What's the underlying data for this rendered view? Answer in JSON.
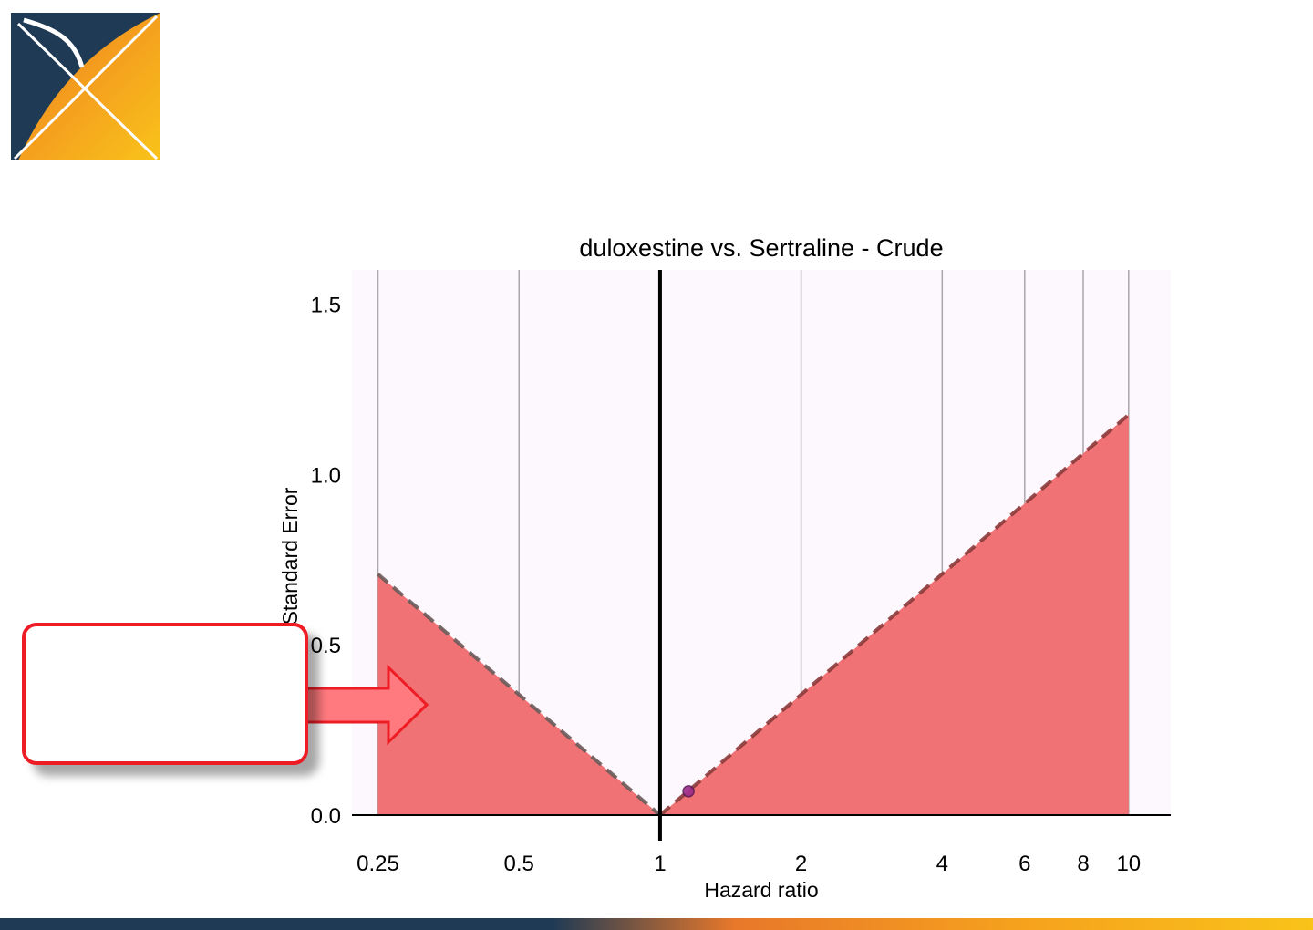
{
  "logo": {
    "name": "OHDSI logo",
    "colors": {
      "navy": "#1e3a55",
      "orange": "#f08a24",
      "yellow": "#f9c31a"
    }
  },
  "chart_data": {
    "type": "scatter",
    "title": "duloxestine vs. Sertraline - Crude",
    "xlabel": "Hazard ratio",
    "ylabel": "Standard Error",
    "x_scale": "log",
    "xlim": [
      0.22,
      12.3
    ],
    "ylim": [
      0,
      1.6
    ],
    "x_ticks": [
      0.25,
      0.5,
      1,
      2,
      4,
      6,
      8,
      10
    ],
    "x_tick_labels": [
      "0.25",
      "0.5",
      "1",
      "2",
      "4",
      "6",
      "8",
      "10"
    ],
    "y_ticks": [
      0,
      0.5,
      1,
      1.5
    ],
    "y_tick_labels": [
      "0.0",
      "0.5",
      "1.0",
      "1.5"
    ],
    "reference_line_x": 1,
    "shaded_region": {
      "description": "significance region where |log(HR)|/SE > 1.96",
      "left_boundary": [
        [
          0.25,
          0.707
        ],
        [
          1,
          0
        ]
      ],
      "right_boundary": [
        [
          1,
          0
        ],
        [
          10,
          1.175
        ]
      ],
      "color": "#f07275"
    },
    "series": [
      {
        "points": [
          {
            "x": 1.15,
            "y": 0.07
          }
        ],
        "color": "#9b2a8a"
      }
    ],
    "grid": true,
    "colors": {
      "panel_background": "#fdf8fd",
      "gridline": "#a9a6a9",
      "reference_line": "#000000",
      "boundary_dash": "#8b3a3a"
    }
  },
  "callout": {
    "text": "",
    "border_color": "#ee1c25",
    "arrow_color": "#ff7a7e"
  },
  "footer_bar": {
    "colors": [
      "#1e3a55",
      "#e8782a",
      "#f9c31a"
    ]
  }
}
